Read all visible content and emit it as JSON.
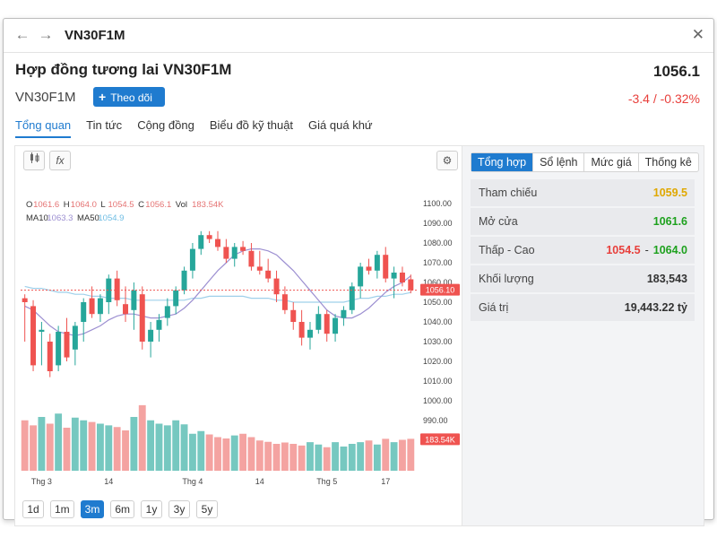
{
  "window": {
    "title": "VN30F1M",
    "icons": {
      "back": "arrow-left-icon",
      "forward": "arrow-right-icon",
      "close": "close-icon"
    }
  },
  "header": {
    "contract_name": "Hợp đồng tương lai VN30F1M",
    "symbol": "VN30F1M",
    "follow_label": "Theo dõi",
    "last_price": "1056.1",
    "change": "-3.4 / -0.32%"
  },
  "tabs": [
    {
      "label": "Tổng quan",
      "active": true
    },
    {
      "label": "Tin tức"
    },
    {
      "label": "Cộng đồng"
    },
    {
      "label": "Biểu đồ kỹ thuật"
    },
    {
      "label": "Giá quá khứ"
    }
  ],
  "toolbar": {
    "candle_icon": "candlestick-icon",
    "indicator_icon": "fx-icon",
    "indicator_label": "fx",
    "settings_icon": "gear-icon"
  },
  "chart_data": {
    "type": "candlestick",
    "ohlc_legend": {
      "o_label": "O",
      "o": "1061.6",
      "h_label": "H",
      "h": "1064.0",
      "l_label": "L",
      "l": "1054.5",
      "c_label": "C",
      "c": "1056.1",
      "vol_label": "Vol",
      "vol": "183.54K"
    },
    "ma_legend": {
      "ma10_label": "MA10",
      "ma10": "1063.3",
      "ma50_label": "MA50",
      "ma50": "1054.9"
    },
    "y_ticks": [
      1100,
      1090,
      1080,
      1070,
      1060,
      1050,
      1040,
      1030,
      1020,
      1010,
      1000,
      990
    ],
    "ylim": [
      990,
      1100
    ],
    "x_ticks": [
      {
        "label": "Thg 3",
        "index": 2
      },
      {
        "label": "14",
        "index": 10
      },
      {
        "label": "Thg 4",
        "index": 20
      },
      {
        "label": "14",
        "index": 28
      },
      {
        "label": "Thg 5",
        "index": 36
      },
      {
        "label": "17",
        "index": 43
      }
    ],
    "current_price_label": "1056.10",
    "current_price": 1056.1,
    "volume_label": "183.54K",
    "candles": [
      [
        1052,
        1054,
        1030,
        1050
      ],
      [
        1048,
        1051,
        1015,
        1018
      ],
      [
        1035,
        1040,
        1018,
        1036
      ],
      [
        1030,
        1034,
        1012,
        1015
      ],
      [
        1018,
        1038,
        1015,
        1035
      ],
      [
        1035,
        1042,
        1020,
        1022
      ],
      [
        1026,
        1040,
        1018,
        1038
      ],
      [
        1040,
        1052,
        1030,
        1050
      ],
      [
        1052,
        1058,
        1042,
        1044
      ],
      [
        1044,
        1054,
        1040,
        1052
      ],
      [
        1050,
        1064,
        1044,
        1062
      ],
      [
        1062,
        1066,
        1048,
        1051
      ],
      [
        1049,
        1058,
        1040,
        1044
      ],
      [
        1046,
        1060,
        1036,
        1056
      ],
      [
        1054,
        1058,
        1026,
        1030
      ],
      [
        1030,
        1040,
        1022,
        1036
      ],
      [
        1036,
        1044,
        1030,
        1041
      ],
      [
        1042,
        1052,
        1038,
        1048
      ],
      [
        1048,
        1058,
        1044,
        1056
      ],
      [
        1056,
        1068,
        1054,
        1066
      ],
      [
        1066,
        1080,
        1062,
        1077
      ],
      [
        1077,
        1086,
        1074,
        1084
      ],
      [
        1084,
        1086,
        1080,
        1082
      ],
      [
        1082,
        1086,
        1076,
        1078
      ],
      [
        1078,
        1082,
        1070,
        1072
      ],
      [
        1072,
        1080,
        1068,
        1078
      ],
      [
        1078,
        1081,
        1074,
        1076
      ],
      [
        1076,
        1080,
        1066,
        1068
      ],
      [
        1068,
        1076,
        1064,
        1066
      ],
      [
        1066,
        1072,
        1060,
        1062
      ],
      [
        1062,
        1066,
        1050,
        1054
      ],
      [
        1054,
        1058,
        1044,
        1046
      ],
      [
        1046,
        1050,
        1036,
        1040
      ],
      [
        1040,
        1046,
        1028,
        1032
      ],
      [
        1032,
        1040,
        1026,
        1036
      ],
      [
        1036,
        1048,
        1034,
        1044
      ],
      [
        1044,
        1046,
        1030,
        1034
      ],
      [
        1034,
        1044,
        1030,
        1042
      ],
      [
        1042,
        1048,
        1038,
        1046
      ],
      [
        1046,
        1060,
        1044,
        1058
      ],
      [
        1058,
        1070,
        1052,
        1068
      ],
      [
        1068,
        1072,
        1064,
        1066
      ],
      [
        1066,
        1076,
        1062,
        1074
      ],
      [
        1074,
        1078,
        1060,
        1062
      ],
      [
        1062,
        1068,
        1052,
        1065
      ],
      [
        1065,
        1068,
        1058,
        1060
      ],
      [
        1061.6,
        1064,
        1054.5,
        1056.1
      ]
    ],
    "volumes": [
      150,
      135,
      160,
      140,
      170,
      128,
      158,
      150,
      145,
      140,
      135,
      130,
      120,
      160,
      195,
      150,
      140,
      135,
      150,
      138,
      110,
      118,
      108,
      100,
      96,
      105,
      110,
      100,
      90,
      86,
      80,
      84,
      80,
      75,
      85,
      78,
      70,
      85,
      72,
      80,
      85,
      90,
      78,
      95,
      85,
      92,
      95
    ],
    "volume_max": 200,
    "ma10": [
      1048,
      1046,
      1042,
      1038,
      1035,
      1034,
      1033,
      1034,
      1036,
      1038,
      1041,
      1043,
      1044,
      1044,
      1043,
      1042,
      1042,
      1043,
      1044,
      1047,
      1051,
      1056,
      1061,
      1066,
      1070,
      1074,
      1076,
      1077,
      1077,
      1076,
      1074,
      1070,
      1066,
      1061,
      1056,
      1051,
      1046,
      1043,
      1042,
      1042,
      1044,
      1047,
      1051,
      1055,
      1058,
      1060,
      1063.3
    ],
    "ma50": [
      1058,
      1057,
      1057,
      1056,
      1055,
      1055,
      1054,
      1054,
      1053,
      1053,
      1052,
      1052,
      1052,
      1051,
      1051,
      1051,
      1051,
      1051,
      1051,
      1051,
      1052,
      1052,
      1053,
      1053,
      1053,
      1053,
      1053,
      1052,
      1052,
      1052,
      1051,
      1051,
      1050,
      1050,
      1050,
      1050,
      1050,
      1050,
      1050,
      1051,
      1052,
      1052,
      1053,
      1053,
      1054,
      1054,
      1054.9
    ],
    "colors": {
      "up": "#26a69a",
      "down": "#ef5350",
      "ma10": "#9c8fd1",
      "ma50": "#9fd0ea",
      "price_line": "#ef5350"
    }
  },
  "ranges": [
    {
      "label": "1d"
    },
    {
      "label": "1m"
    },
    {
      "label": "3m",
      "active": true
    },
    {
      "label": "6m"
    },
    {
      "label": "1y"
    },
    {
      "label": "3y"
    },
    {
      "label": "5y"
    }
  ],
  "side_panel": {
    "tabs": [
      {
        "label": "Tổng hợp",
        "active": true
      },
      {
        "label": "Sổ lệnh"
      },
      {
        "label": "Mức giá"
      },
      {
        "label": "Thống kê"
      }
    ],
    "stats": [
      {
        "label": "Tham chiếu",
        "value": "1059.5",
        "color": "#e0a800"
      },
      {
        "label": "Mở cửa",
        "value": "1061.6",
        "color": "#1ea11e"
      },
      {
        "label": "Thấp - Cao",
        "low": "1054.5",
        "separator": "-",
        "high": "1064.0",
        "low_color": "#e8403c",
        "high_color": "#1ea11e"
      },
      {
        "label": "Khối lượng",
        "value": "183,543",
        "color": "#333333"
      },
      {
        "label": "Giá trị",
        "value": "19,443.22 tỷ",
        "color": "#333333"
      }
    ]
  }
}
